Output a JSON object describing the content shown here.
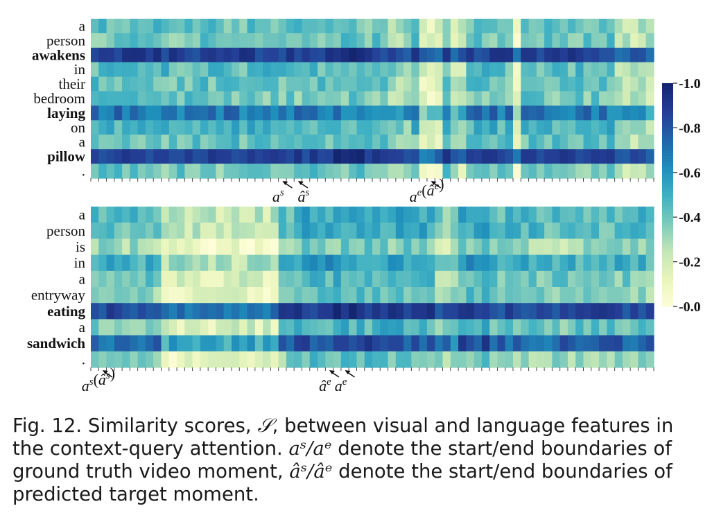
{
  "chart_data": [
    {
      "type": "heatmap",
      "title": "",
      "y_labels": [
        "a",
        "person",
        "awakens",
        "in",
        "their",
        "bedroom",
        "laying",
        "on",
        "a",
        "pillow",
        "."
      ],
      "bold_labels": [
        "awakens",
        "laying",
        "pillow"
      ],
      "n_columns": 72,
      "rows": [
        {
          "token": "a",
          "base": 0.42,
          "pattern": "soft"
        },
        {
          "token": "person",
          "base": 0.4,
          "pattern": "soft"
        },
        {
          "token": "awakens",
          "base": 0.88,
          "pattern": "strong"
        },
        {
          "token": "in",
          "base": 0.45,
          "pattern": "soft"
        },
        {
          "token": "their",
          "base": 0.42,
          "pattern": "soft"
        },
        {
          "token": "bedroom",
          "base": 0.4,
          "pattern": "soft"
        },
        {
          "token": "laying",
          "base": 0.7,
          "pattern": "mid"
        },
        {
          "token": "on",
          "base": 0.48,
          "pattern": "soft"
        },
        {
          "token": "a",
          "base": 0.42,
          "pattern": "soft"
        },
        {
          "token": "pillow",
          "base": 0.88,
          "pattern": "strong"
        },
        {
          "token": ".",
          "base": 0.4,
          "pattern": "soft"
        }
      ],
      "markers": [
        {
          "label": "a^s",
          "column": 24
        },
        {
          "label": "â^s",
          "column": 26
        },
        {
          "label": "a^e(â^e)",
          "column": 43
        }
      ]
    },
    {
      "type": "heatmap",
      "title": "",
      "y_labels": [
        "a",
        "person",
        "is",
        "in",
        "a",
        "entryway",
        "eating",
        "a",
        "sandwich",
        "."
      ],
      "bold_labels": [
        "eating",
        "sandwich"
      ],
      "n_columns": 72,
      "rows": [
        {
          "token": "a",
          "base": 0.45,
          "pattern": "soft"
        },
        {
          "token": "person",
          "base": 0.45,
          "pattern": "soft"
        },
        {
          "token": "is",
          "base": 0.3,
          "pattern": "pale"
        },
        {
          "token": "in",
          "base": 0.5,
          "pattern": "soft"
        },
        {
          "token": "a",
          "base": 0.4,
          "pattern": "soft"
        },
        {
          "token": "entryway",
          "base": 0.35,
          "pattern": "pale"
        },
        {
          "token": "eating",
          "base": 0.85,
          "pattern": "strong"
        },
        {
          "token": "a",
          "base": 0.4,
          "pattern": "soft"
        },
        {
          "token": "sandwich",
          "base": 0.75,
          "pattern": "mid"
        },
        {
          "token": ".",
          "base": 0.35,
          "pattern": "soft"
        }
      ],
      "markers": [
        {
          "label": "a^s(â^s)",
          "column": 1
        },
        {
          "label": "â^e",
          "column": 30
        },
        {
          "label": "a^e",
          "column": 32
        }
      ]
    }
  ],
  "colorbar": {
    "ticks": [
      "0.0",
      "0.2",
      "0.4",
      "0.6",
      "0.8",
      "1.0"
    ],
    "min": 0.0,
    "max": 1.0,
    "colors": [
      "#fffed8",
      "#e9f5bc",
      "#c4e7b6",
      "#7ecbbb",
      "#40b1c3",
      "#1f8fbc",
      "#2166a9",
      "#243e96",
      "#152671"
    ]
  },
  "caption": {
    "prefix": "Fig. 12. Similarity scores, ",
    "symbol_S": "𝒮",
    "part1": ", between visual and language features in the context-query attention. ",
    "sym1": "aˢ/aᵉ",
    "part2": " denote the start/end boundaries of ground truth video moment, ",
    "sym2": "âˢ/âᵉ",
    "part3": " denote the start/end boundaries of predicted target moment."
  }
}
